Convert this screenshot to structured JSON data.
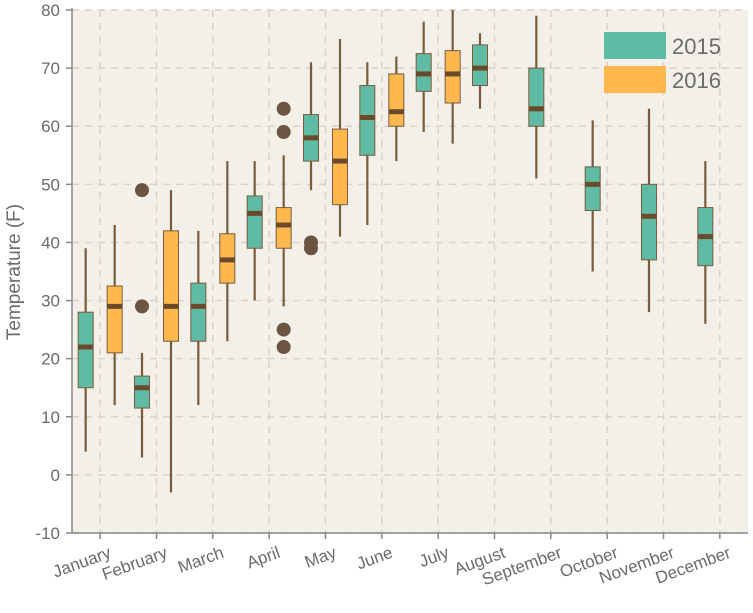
{
  "chart_data": {
    "type": "box",
    "title": "",
    "xlabel": "",
    "ylabel": "Temperature (F)",
    "ylim": [
      -10,
      80
    ],
    "yticks": [
      -10,
      0,
      10,
      20,
      30,
      40,
      50,
      60,
      70,
      80
    ],
    "grid": true,
    "legend_position": "top-right",
    "categories": [
      "January",
      "February",
      "March",
      "April",
      "May",
      "June",
      "July",
      "August",
      "September",
      "October",
      "November",
      "December"
    ],
    "series": [
      {
        "name": "2015",
        "color": "#5fbba4",
        "boxes": [
          {
            "category": "January",
            "whisker_low": 4,
            "q1": 15,
            "median": 22,
            "q3": 28,
            "whisker_high": 39,
            "outliers": []
          },
          {
            "category": "February",
            "whisker_low": 3,
            "q1": 11.5,
            "median": 15,
            "q3": 17,
            "whisker_high": 21,
            "outliers": [
              29,
              49
            ]
          },
          {
            "category": "March",
            "whisker_low": 12,
            "q1": 23,
            "median": 29,
            "q3": 33,
            "whisker_high": 42,
            "outliers": []
          },
          {
            "category": "April",
            "whisker_low": 30,
            "q1": 39,
            "median": 45,
            "q3": 48,
            "whisker_high": 54,
            "outliers": []
          },
          {
            "category": "May",
            "whisker_low": 49,
            "q1": 54,
            "median": 58,
            "q3": 62,
            "whisker_high": 71,
            "outliers": [
              40,
              39
            ]
          },
          {
            "category": "June",
            "whisker_low": 43,
            "q1": 55,
            "median": 61.5,
            "q3": 67,
            "whisker_high": 71,
            "outliers": []
          },
          {
            "category": "July",
            "whisker_low": 59,
            "q1": 66,
            "median": 69,
            "q3": 72.5,
            "whisker_high": 78,
            "outliers": []
          },
          {
            "category": "August",
            "whisker_low": 63,
            "q1": 67,
            "median": 70,
            "q3": 74,
            "whisker_high": 76,
            "outliers": []
          },
          {
            "category": "September",
            "whisker_low": 51,
            "q1": 60,
            "median": 63,
            "q3": 70,
            "whisker_high": 79,
            "outliers": []
          },
          {
            "category": "October",
            "whisker_low": 35,
            "q1": 45.5,
            "median": 50,
            "q3": 53,
            "whisker_high": 61,
            "outliers": []
          },
          {
            "category": "November",
            "whisker_low": 28,
            "q1": 37,
            "median": 44.5,
            "q3": 50,
            "whisker_high": 63,
            "outliers": []
          },
          {
            "category": "December",
            "whisker_low": 26,
            "q1": 36,
            "median": 41,
            "q3": 46,
            "whisker_high": 54,
            "outliers": []
          }
        ]
      },
      {
        "name": "2016",
        "color": "#ffb84d",
        "boxes": [
          {
            "category": "January",
            "whisker_low": 12,
            "q1": 21,
            "median": 29,
            "q3": 32.5,
            "whisker_high": 43,
            "outliers": []
          },
          {
            "category": "February",
            "whisker_low": -3,
            "q1": 23,
            "median": 29,
            "q3": 42,
            "whisker_high": 49,
            "outliers": []
          },
          {
            "category": "March",
            "whisker_low": 23,
            "q1": 33,
            "median": 37,
            "q3": 41.5,
            "whisker_high": 54,
            "outliers": []
          },
          {
            "category": "April",
            "whisker_low": 29,
            "q1": 39,
            "median": 43,
            "q3": 46,
            "whisker_high": 55,
            "outliers": [
              63,
              59,
              25,
              22
            ]
          },
          {
            "category": "May",
            "whisker_low": 41,
            "q1": 46.5,
            "median": 54,
            "q3": 59.5,
            "whisker_high": 75,
            "outliers": []
          },
          {
            "category": "June",
            "whisker_low": 54,
            "q1": 60,
            "median": 62.5,
            "q3": 69,
            "whisker_high": 72,
            "outliers": []
          },
          {
            "category": "July",
            "whisker_low": 57,
            "q1": 64,
            "median": 69,
            "q3": 73,
            "whisker_high": 80,
            "outliers": []
          }
        ]
      }
    ]
  }
}
